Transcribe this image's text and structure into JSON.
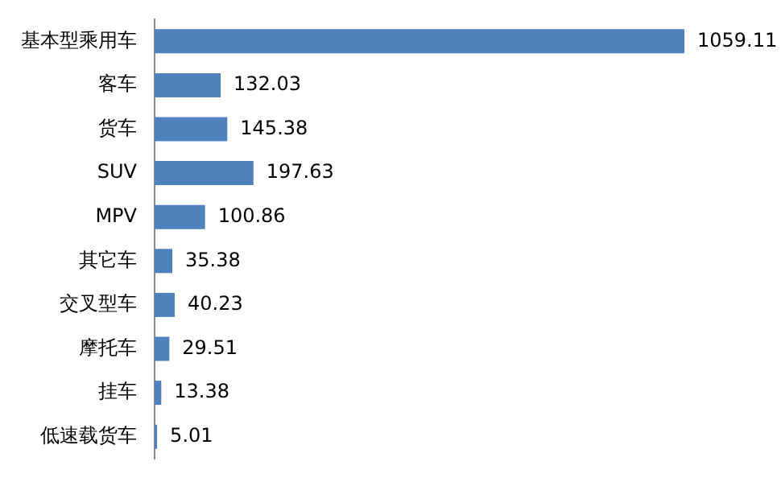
{
  "chart_data": {
    "type": "bar",
    "orientation": "horizontal",
    "categories": [
      "基本型乘用车",
      "客车",
      "货车",
      "SUV",
      "MPV",
      "其它车",
      "交叉型车",
      "摩托车",
      "挂车",
      "低速载货车"
    ],
    "values": [
      1059.11,
      132.03,
      145.38,
      197.63,
      100.86,
      35.38,
      40.23,
      29.51,
      13.38,
      5.01
    ],
    "color": "#4f81bd",
    "data_labels": true,
    "tick_labels": "y",
    "grid": false,
    "legend": false
  }
}
